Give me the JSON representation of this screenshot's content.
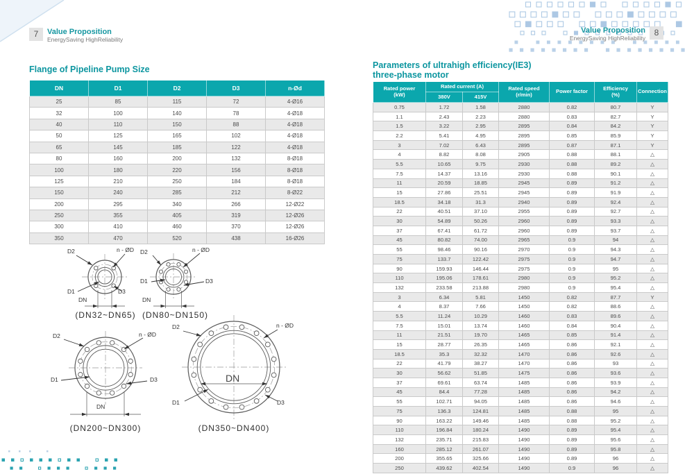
{
  "page_left": {
    "page_number": "7",
    "header_title": "Value Proposition",
    "header_subtitle": "EnergySaving HighReliability",
    "section_title": "Flange of Pipeline Pump Size",
    "flange_table": {
      "columns": [
        "DN",
        "D1",
        "D2",
        "D3",
        "n-Ød"
      ],
      "rows": [
        [
          "25",
          "85",
          "115",
          "72",
          "4-Ø16"
        ],
        [
          "32",
          "100",
          "140",
          "78",
          "4-Ø18"
        ],
        [
          "40",
          "110",
          "150",
          "88",
          "4-Ø18"
        ],
        [
          "50",
          "125",
          "165",
          "102",
          "4-Ø18"
        ],
        [
          "65",
          "145",
          "185",
          "122",
          "4-Ø18"
        ],
        [
          "80",
          "160",
          "200",
          "132",
          "8-Ø18"
        ],
        [
          "100",
          "180",
          "220",
          "156",
          "8-Ø18"
        ],
        [
          "125",
          "210",
          "250",
          "184",
          "8-Ø18"
        ],
        [
          "150",
          "240",
          "285",
          "212",
          "8-Ø22"
        ],
        [
          "200",
          "295",
          "340",
          "266",
          "12-Ø22"
        ],
        [
          "250",
          "355",
          "405",
          "319",
          "12-Ø26"
        ],
        [
          "300",
          "410",
          "460",
          "370",
          "12-Ø26"
        ],
        [
          "350",
          "470",
          "520",
          "438",
          "16-Ø26"
        ]
      ]
    },
    "diagram_labels": {
      "d1": "D1",
      "d2": "D2",
      "d3": "D3",
      "dn": "DN",
      "bolt": "n - ØD"
    },
    "diagram_captions": [
      "(DN32~DN65)",
      "(DN80~DN150)",
      "(DN200~DN300)",
      "(DN350~DN400)"
    ]
  },
  "page_right": {
    "page_number": "8",
    "header_title": "Value Proposition",
    "header_subtitle": "EnergySaving HighReliability",
    "section_title_line1": "Parameters of ultrahigh efficiency(IE3)",
    "section_title_line2": "three-phase motor",
    "motor_table": {
      "header": {
        "rated_power": "Rated power\n(kW)",
        "rated_current": "Rated current (A)",
        "v380": "380V",
        "v415": "415V",
        "rated_speed": "Rated speed\n(r/min)",
        "power_factor": "Power factor",
        "efficiency": "Efficiency\n(%)",
        "connection": "Connection"
      },
      "rows": [
        [
          "0.75",
          "1.72",
          "1.58",
          "2880",
          "0.82",
          "80.7",
          "Y"
        ],
        [
          "1.1",
          "2.43",
          "2.23",
          "2880",
          "0.83",
          "82.7",
          "Y"
        ],
        [
          "1.5",
          "3.22",
          "2.95",
          "2895",
          "0.84",
          "84.2",
          "Y"
        ],
        [
          "2.2",
          "5.41",
          "4.95",
          "2895",
          "0.85",
          "85.9",
          "Y"
        ],
        [
          "3",
          "7.02",
          "6.43",
          "2895",
          "0.87",
          "87.1",
          "Y"
        ],
        [
          "4",
          "8.82",
          "8.08",
          "2905",
          "0.88",
          "88.1",
          "△"
        ],
        [
          "5.5",
          "10.65",
          "9.75",
          "2930",
          "0.88",
          "89.2",
          "△"
        ],
        [
          "7.5",
          "14.37",
          "13.16",
          "2930",
          "0.88",
          "90.1",
          "△"
        ],
        [
          "11",
          "20.59",
          "18.85",
          "2945",
          "0.89",
          "91.2",
          "△"
        ],
        [
          "15",
          "27.86",
          "25.51",
          "2945",
          "0.89",
          "91.9",
          "△"
        ],
        [
          "18.5",
          "34.18",
          "31.3",
          "2940",
          "0.89",
          "92.4",
          "△"
        ],
        [
          "22",
          "40.51",
          "37.10",
          "2955",
          "0.89",
          "92.7",
          "△"
        ],
        [
          "30",
          "54.89",
          "50.26",
          "2960",
          "0.89",
          "93.3",
          "△"
        ],
        [
          "37",
          "67.41",
          "61.72",
          "2960",
          "0.89",
          "93.7",
          "△"
        ],
        [
          "45",
          "80.82",
          "74.00",
          "2965",
          "0.9",
          "94",
          "△"
        ],
        [
          "55",
          "98.46",
          "90.16",
          "2970",
          "0.9",
          "94.3",
          "△"
        ],
        [
          "75",
          "133.7",
          "122.42",
          "2975",
          "0.9",
          "94.7",
          "△"
        ],
        [
          "90",
          "159.93",
          "146.44",
          "2975",
          "0.9",
          "95",
          "△"
        ],
        [
          "110",
          "195.06",
          "178.61",
          "2980",
          "0.9",
          "95.2",
          "△"
        ],
        [
          "132",
          "233.58",
          "213.88",
          "2980",
          "0.9",
          "95.4",
          "△"
        ],
        [
          "3",
          "6.34",
          "5.81",
          "1450",
          "0.82",
          "87.7",
          "Y"
        ],
        [
          "4",
          "8.37",
          "7.66",
          "1450",
          "0.82",
          "88.6",
          "△"
        ],
        [
          "5.5",
          "11.24",
          "10.29",
          "1460",
          "0.83",
          "89.6",
          "△"
        ],
        [
          "7.5",
          "15.01",
          "13.74",
          "1460",
          "0.84",
          "90.4",
          "△"
        ],
        [
          "11",
          "21.51",
          "19.70",
          "1465",
          "0.85",
          "91.4",
          "△"
        ],
        [
          "15",
          "28.77",
          "26.35",
          "1465",
          "0.86",
          "92.1",
          "△"
        ],
        [
          "18.5",
          "35.3",
          "32.32",
          "1470",
          "0.86",
          "92.6",
          "△"
        ],
        [
          "22",
          "41.79",
          "38.27",
          "1470",
          "0.86",
          "93",
          "△"
        ],
        [
          "30",
          "56.62",
          "51.85",
          "1475",
          "0.86",
          "93.6",
          "△"
        ],
        [
          "37",
          "69.61",
          "63.74",
          "1485",
          "0.86",
          "93.9",
          "△"
        ],
        [
          "45",
          "84.4",
          "77.28",
          "1485",
          "0.86",
          "94.2",
          "△"
        ],
        [
          "55",
          "102.71",
          "94.05",
          "1485",
          "0.86",
          "94.6",
          "△"
        ],
        [
          "75",
          "136.3",
          "124.81",
          "1485",
          "0.88",
          "95",
          "△"
        ],
        [
          "90",
          "163.22",
          "149.46",
          "1485",
          "0.88",
          "95.2",
          "△"
        ],
        [
          "110",
          "196.84",
          "180.24",
          "1490",
          "0.89",
          "95.4",
          "△"
        ],
        [
          "132",
          "235.71",
          "215.83",
          "1490",
          "0.89",
          "95.6",
          "△"
        ],
        [
          "160",
          "285.12",
          "261.07",
          "1490",
          "0.89",
          "95.8",
          "△"
        ],
        [
          "200",
          "355.65",
          "325.66",
          "1490",
          "0.89",
          "96",
          "△"
        ],
        [
          "250",
          "439.62",
          "402.54",
          "1490",
          "0.9",
          "96",
          "△"
        ]
      ]
    }
  },
  "colors": {
    "accent_teal": "#0ba7ad",
    "title_teal": "#0d96a0",
    "row_alt_gray": "#e9e9e9",
    "dot_blue": "#a9c6e3",
    "dot_teal": "#2ba3b0"
  }
}
